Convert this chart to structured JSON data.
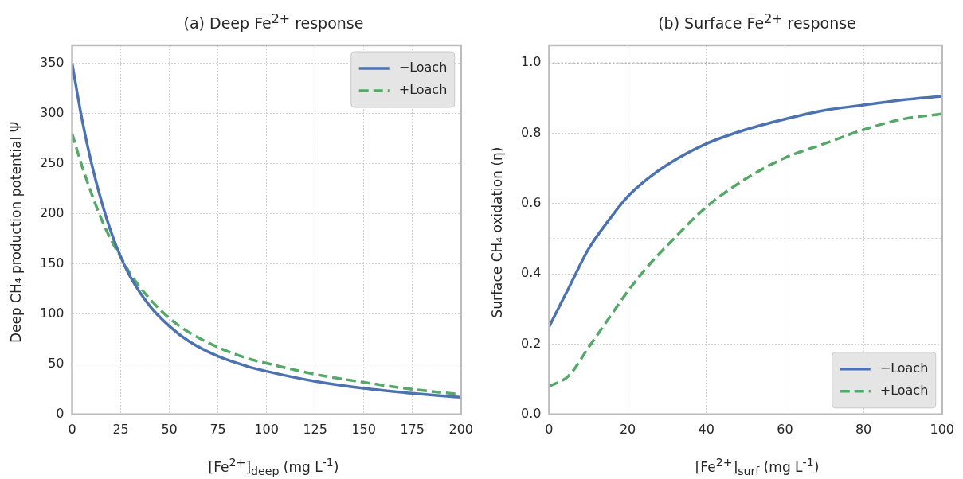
{
  "chart_data": [
    {
      "type": "line",
      "title": "(a) Deep Fe$^{2+}$ response",
      "xlabel": "[Fe$^{2+}$]$_{deep}$ (mg L$^{-1}$)",
      "ylabel": "Deep CH₄ production potential Ψ",
      "xlim": [
        0,
        200
      ],
      "xticks": [
        0,
        25,
        50,
        75,
        100,
        125,
        150,
        175,
        200
      ],
      "ylim": [
        0,
        368
      ],
      "yticks": [
        0,
        50,
        100,
        150,
        200,
        250,
        300,
        350
      ],
      "grid": true,
      "legend": "top right",
      "marker": "none",
      "x": [
        0,
        5,
        10,
        15,
        20,
        25,
        30,
        40,
        50,
        60,
        75,
        90,
        100,
        125,
        150,
        175,
        200
      ],
      "series": [
        {
          "name": "−Loach",
          "color": "#4c72b0",
          "line_style": "solid",
          "values": [
            350,
            295,
            250,
            213,
            182,
            157,
            137,
            108,
            88,
            73,
            58,
            48,
            43,
            33,
            26,
            21,
            17
          ]
        },
        {
          "name": "+Loach",
          "color": "#55a868",
          "line_style": "dashed",
          "values": [
            280,
            248,
            220,
            195,
            174,
            157,
            140,
            115,
            96,
            82,
            67,
            56,
            51,
            40,
            32,
            25,
            20
          ]
        }
      ]
    },
    {
      "type": "line",
      "title": "(b) Surface Fe$^{2+}$ response",
      "xlabel": "[Fe$^{2+}$]$_{surf}$ (mg L$^{-1}$)",
      "ylabel": "Surface CH₄ oxidation (η)",
      "xlim": [
        0,
        100
      ],
      "xticks": [
        0,
        20,
        40,
        60,
        80,
        100
      ],
      "ylim": [
        0,
        1.05
      ],
      "yticks": [
        {
          "value": 0,
          "label": "0.0"
        },
        0.2,
        0.4,
        0.6,
        0.8,
        {
          "value": 1,
          "label": "1.0"
        }
      ],
      "grid": true,
      "legend": "bottom right",
      "marker": "none",
      "ref_lines": [
        {
          "axis": "y",
          "value": 1,
          "color": "#999999",
          "line_style": "dotted"
        },
        {
          "axis": "y",
          "value": 0.5,
          "color": "#999999",
          "line_style": "dotted"
        }
      ],
      "x": [
        0,
        5,
        10,
        15,
        20,
        25,
        30,
        40,
        50,
        60,
        70,
        80,
        90,
        100
      ],
      "series": [
        {
          "name": "−Loach",
          "color": "#4c72b0",
          "line_style": "solid",
          "values": [
            0.25,
            0.36,
            0.47,
            0.55,
            0.62,
            0.67,
            0.71,
            0.77,
            0.81,
            0.84,
            0.865,
            0.88,
            0.895,
            0.905
          ]
        },
        {
          "name": "+Loach",
          "color": "#55a868",
          "line_style": "dashed",
          "values": [
            0.08,
            0.11,
            0.19,
            0.27,
            0.35,
            0.42,
            0.48,
            0.59,
            0.67,
            0.73,
            0.77,
            0.81,
            0.84,
            0.855
          ]
        }
      ]
    }
  ]
}
